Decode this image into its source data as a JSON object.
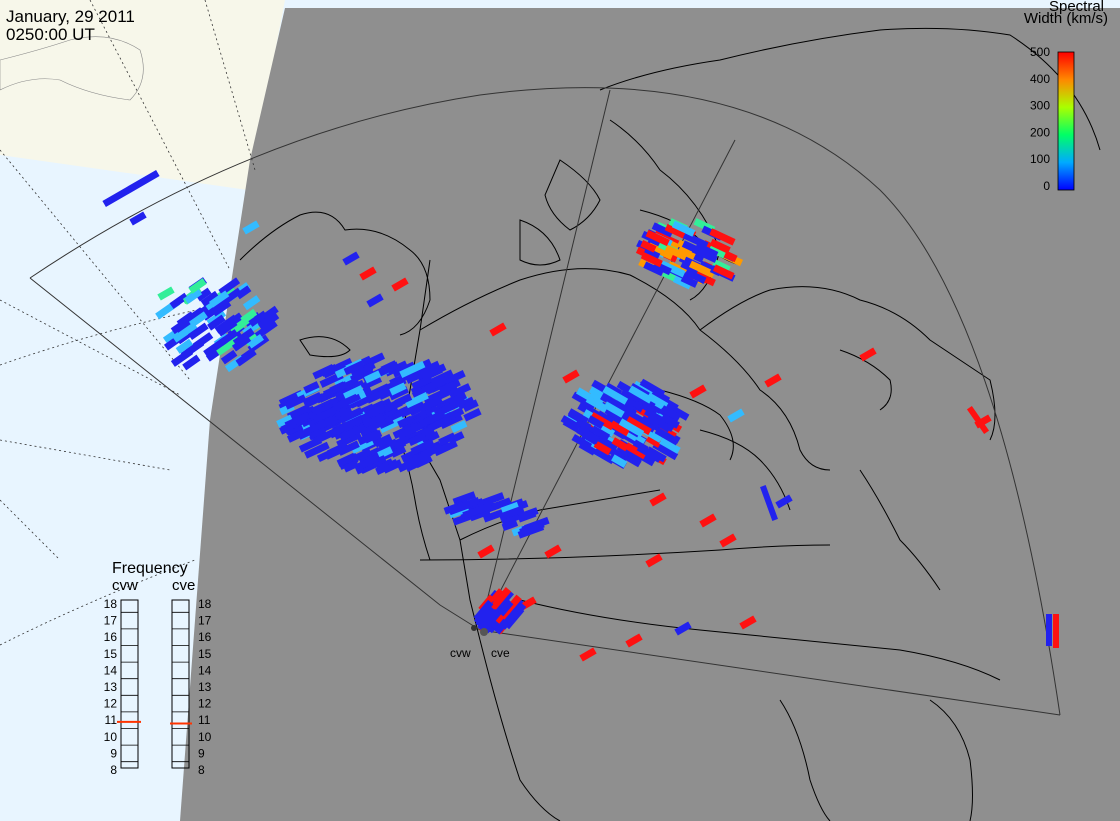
{
  "header": {
    "date": "January, 29 2011",
    "time": "0250:00 UT"
  },
  "color_scale": {
    "title_line1": "Spectral",
    "title_line2": "Width (km/s)",
    "ticks": [
      "0",
      "100",
      "200",
      "300",
      "400",
      "500"
    ],
    "min": 0,
    "max": 500
  },
  "frequency_panel": {
    "title": "Frequency",
    "left_label": "cvw",
    "right_label": "cve",
    "ticks": [
      "8",
      "9",
      "10",
      "11",
      "12",
      "13",
      "14",
      "15",
      "16",
      "17",
      "18"
    ],
    "cvw_value": 10.9,
    "cve_value": 10.8,
    "marker_color": "#ff3300"
  },
  "radar_sites": {
    "west": "cvw",
    "east": "cve"
  },
  "colors": {
    "map_background": "#8f8f8f",
    "ocean": "#e8f5ff",
    "land_out_of_view": "#f7f7ea",
    "low_width": "#2222ee",
    "mid_low": "#33bbff",
    "mid": "#33ee99",
    "mid_high": "#ff9900",
    "high_width": "#ff1111"
  }
}
